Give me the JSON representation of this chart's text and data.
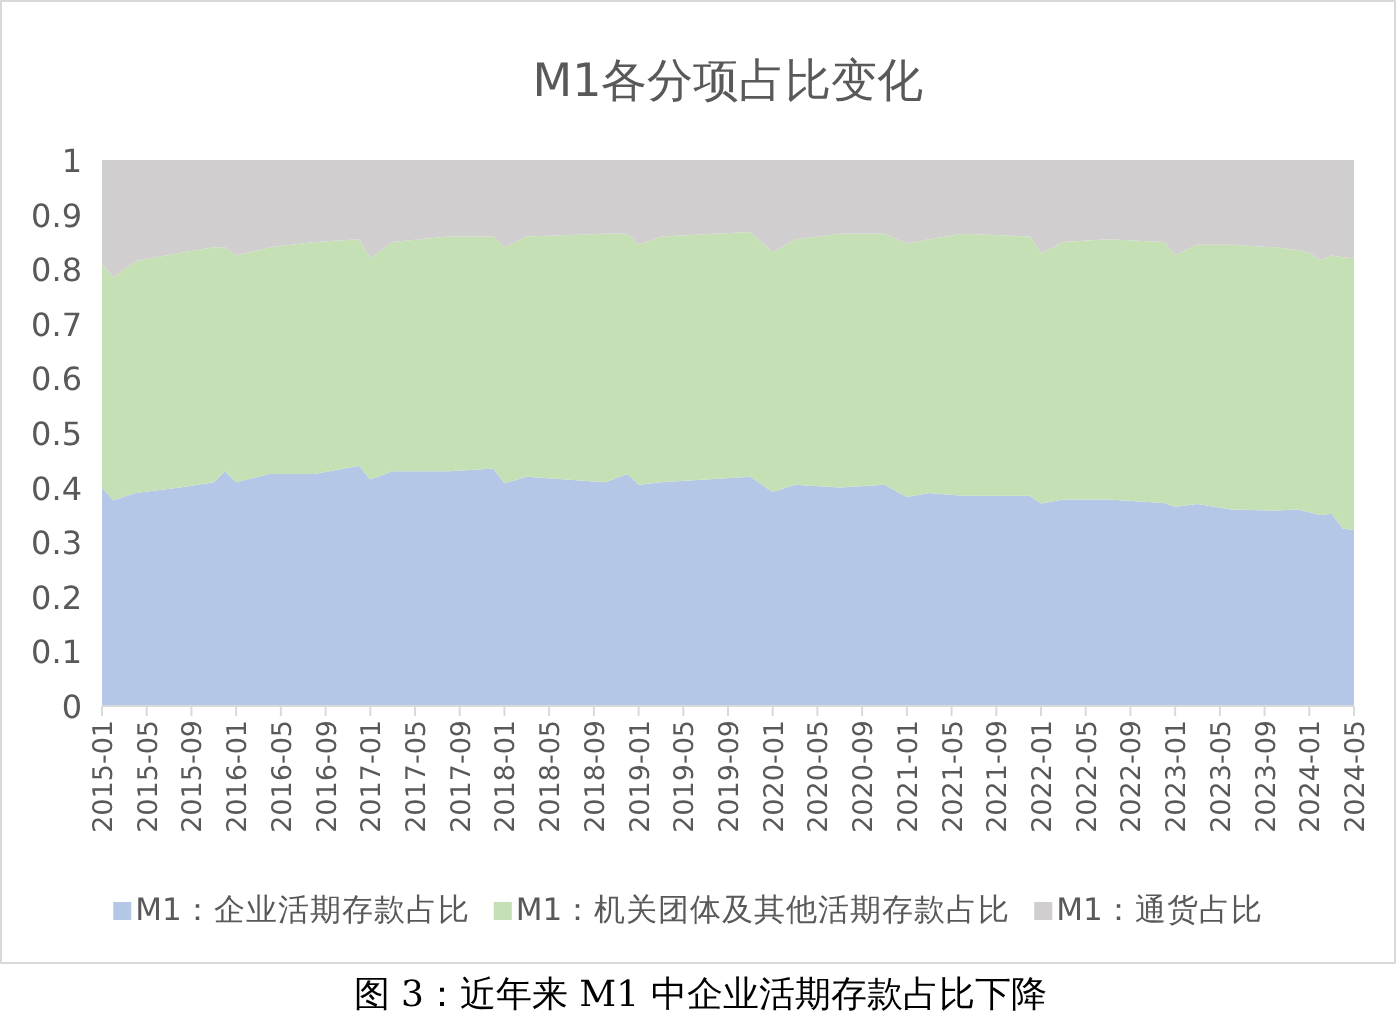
{
  "chart_data": {
    "type": "area",
    "stacked": true,
    "title": "M1各分项占比变化",
    "annotations": [
      "图 3：近年来 M1 中企业活期存款占比下降"
    ],
    "x": [
      "2015-01",
      "2015-02",
      "2015-04",
      "2015-08",
      "2015-11",
      "2015-12",
      "2016-01",
      "2016-04",
      "2016-08",
      "2016-12",
      "2017-01",
      "2017-03",
      "2017-08",
      "2017-12",
      "2018-01",
      "2018-03",
      "2018-10",
      "2018-12",
      "2019-01",
      "2019-03",
      "2019-11",
      "2020-01",
      "2020-03",
      "2020-07",
      "2020-11",
      "2021-01",
      "2021-03",
      "2021-06",
      "2021-12",
      "2022-01",
      "2022-03",
      "2022-07",
      "2022-12",
      "2023-01",
      "2023-03",
      "2023-06",
      "2023-10",
      "2023-12",
      "2024-01",
      "2024-02",
      "2024-03",
      "2024-04",
      "2024-05"
    ],
    "series": [
      {
        "name": "M1：企业活期存款占比",
        "color": "#b4c7e7",
        "values": [
          0.4,
          0.377,
          0.39,
          0.4,
          0.41,
          0.43,
          0.41,
          0.425,
          0.425,
          0.44,
          0.415,
          0.43,
          0.43,
          0.435,
          0.408,
          0.42,
          0.41,
          0.425,
          0.405,
          0.41,
          0.42,
          0.392,
          0.405,
          0.4,
          0.405,
          0.383,
          0.39,
          0.385,
          0.385,
          0.371,
          0.378,
          0.378,
          0.372,
          0.365,
          0.37,
          0.36,
          0.358,
          0.36,
          0.355,
          0.35,
          0.352,
          0.325,
          0.322
        ]
      },
      {
        "name": "M1：机关团体及其他活期存款占比",
        "color": "#c5e0b4",
        "values": [
          0.41,
          0.408,
          0.425,
          0.43,
          0.43,
          0.41,
          0.415,
          0.415,
          0.425,
          0.415,
          0.405,
          0.42,
          0.43,
          0.425,
          0.432,
          0.44,
          0.455,
          0.44,
          0.44,
          0.45,
          0.448,
          0.439,
          0.45,
          0.465,
          0.46,
          0.464,
          0.465,
          0.48,
          0.475,
          0.458,
          0.472,
          0.477,
          0.478,
          0.461,
          0.475,
          0.485,
          0.482,
          0.475,
          0.475,
          0.467,
          0.473,
          0.497,
          0.498
        ]
      },
      {
        "name": "M1：通货占比",
        "color": "#d0cece",
        "values": [
          0.19,
          0.215,
          0.185,
          0.17,
          0.16,
          0.16,
          0.175,
          0.16,
          0.15,
          0.145,
          0.18,
          0.15,
          0.14,
          0.14,
          0.16,
          0.14,
          0.135,
          0.135,
          0.155,
          0.14,
          0.132,
          0.169,
          0.145,
          0.135,
          0.135,
          0.153,
          0.145,
          0.135,
          0.14,
          0.171,
          0.15,
          0.145,
          0.15,
          0.174,
          0.155,
          0.155,
          0.16,
          0.165,
          0.17,
          0.183,
          0.175,
          0.178,
          0.18
        ]
      }
    ],
    "xlim": [
      "2015-01",
      "2024-05"
    ],
    "xticks": [
      "2015-01",
      "2015-05",
      "2015-09",
      "2016-01",
      "2016-05",
      "2016-09",
      "2017-01",
      "2017-05",
      "2017-09",
      "2018-01",
      "2018-05",
      "2018-09",
      "2019-01",
      "2019-05",
      "2019-09",
      "2020-01",
      "2020-05",
      "2020-09",
      "2021-01",
      "2021-05",
      "2021-09",
      "2022-01",
      "2022-05",
      "2022-09",
      "2023-01",
      "2023-05",
      "2023-09",
      "2024-01",
      "2024-05"
    ],
    "ylim": [
      0,
      1
    ],
    "yticks": [
      0,
      0.1,
      0.2,
      0.3,
      0.4,
      0.5,
      0.6,
      0.7,
      0.8,
      0.9,
      1
    ],
    "legend": "bottom"
  }
}
